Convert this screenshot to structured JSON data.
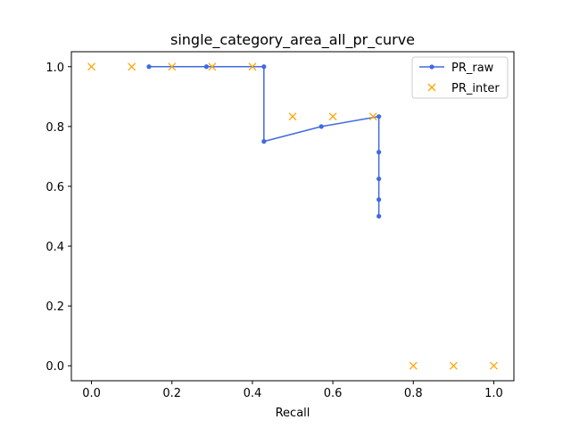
{
  "chart_data": {
    "type": "line",
    "title": "single_category_area_all_pr_curve",
    "xlabel": "Recall",
    "ylabel": "",
    "xlim": [
      -0.05,
      1.05
    ],
    "ylim": [
      -0.05,
      1.05
    ],
    "xticks": [
      0.0,
      0.2,
      0.4,
      0.6,
      0.8,
      1.0
    ],
    "xtick_labels": [
      "0.0",
      "0.2",
      "0.4",
      "0.6",
      "0.8",
      "1.0"
    ],
    "yticks": [
      0.0,
      0.2,
      0.4,
      0.6,
      0.8,
      1.0
    ],
    "ytick_labels": [
      "0.0",
      "0.2",
      "0.4",
      "0.6",
      "0.8",
      "1.0"
    ],
    "grid": false,
    "legend_position": "top-right",
    "series": [
      {
        "name": "PR_raw",
        "style": "line-dot",
        "color": "#4169e1",
        "x": [
          0.1429,
          0.2857,
          0.4286,
          0.4286,
          0.5714,
          0.7143,
          0.7143,
          0.7143,
          0.7143,
          0.7143
        ],
        "y": [
          1.0,
          1.0,
          1.0,
          0.75,
          0.8,
          0.8333,
          0.7143,
          0.625,
          0.5556,
          0.5
        ]
      },
      {
        "name": "PR_inter",
        "style": "x-marker",
        "color": "#ffa500",
        "x": [
          0.0,
          0.1,
          0.2,
          0.3,
          0.4,
          0.5,
          0.6,
          0.7,
          0.8,
          0.9,
          1.0
        ],
        "y": [
          1.0,
          1.0,
          1.0,
          1.0,
          1.0,
          0.8333,
          0.8333,
          0.8333,
          0.0,
          0.0,
          0.0
        ]
      }
    ]
  }
}
